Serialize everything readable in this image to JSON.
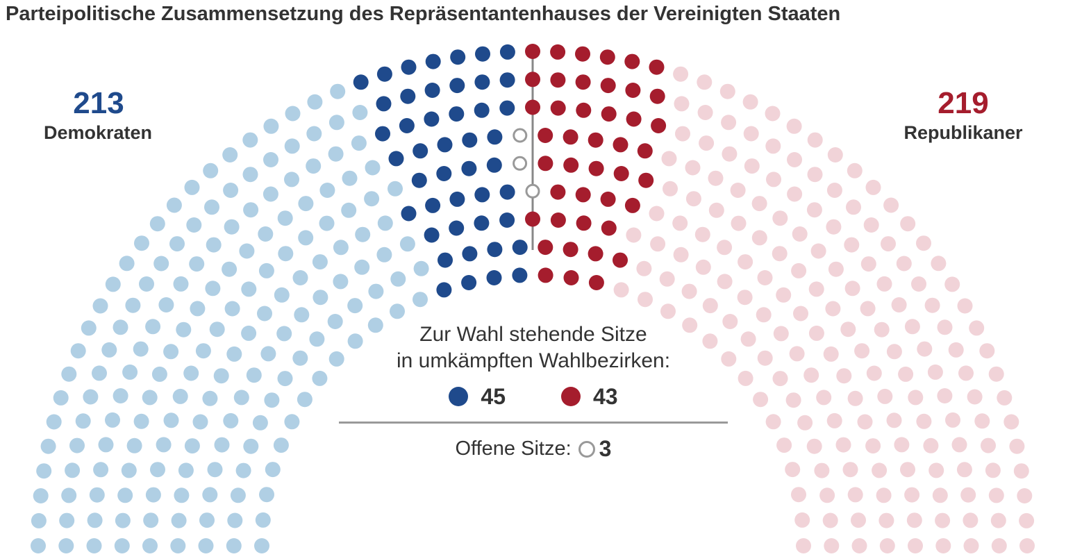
{
  "title": "Parteipolitische Zusammensetzung des Repräsentantenhauses der Vereinigten Staaten",
  "colors": {
    "dem_strong": "#1f4a8c",
    "dem_light": "#b0cfe4",
    "rep_strong": "#a51d2d",
    "rep_light": "#f1d3d8",
    "open": "#999999"
  },
  "democrats": {
    "count": "213",
    "label": "Demokraten"
  },
  "republicans": {
    "count": "219",
    "label": "Republikaner"
  },
  "legend": {
    "title_line1": "Zur Wahl stehende Sitze",
    "title_line2": "in umkämpften Wahlbezirken:",
    "dem_value": "45",
    "rep_value": "43",
    "open_label": "Offene Sitze:",
    "open_value": "3"
  },
  "chart_data": {
    "type": "parliament",
    "total_seats": 435,
    "groups": [
      {
        "name": "Demokraten",
        "seats": 213,
        "contested": 45,
        "contested_color": "#1f4a8c",
        "other_color": "#b0cfe4"
      },
      {
        "name": "Offene Sitze",
        "seats": 3,
        "color": "#999999"
      },
      {
        "name": "Republikaner",
        "seats": 219,
        "contested": 43,
        "contested_color": "#a51d2d",
        "other_color": "#f1d3d8"
      }
    ]
  }
}
